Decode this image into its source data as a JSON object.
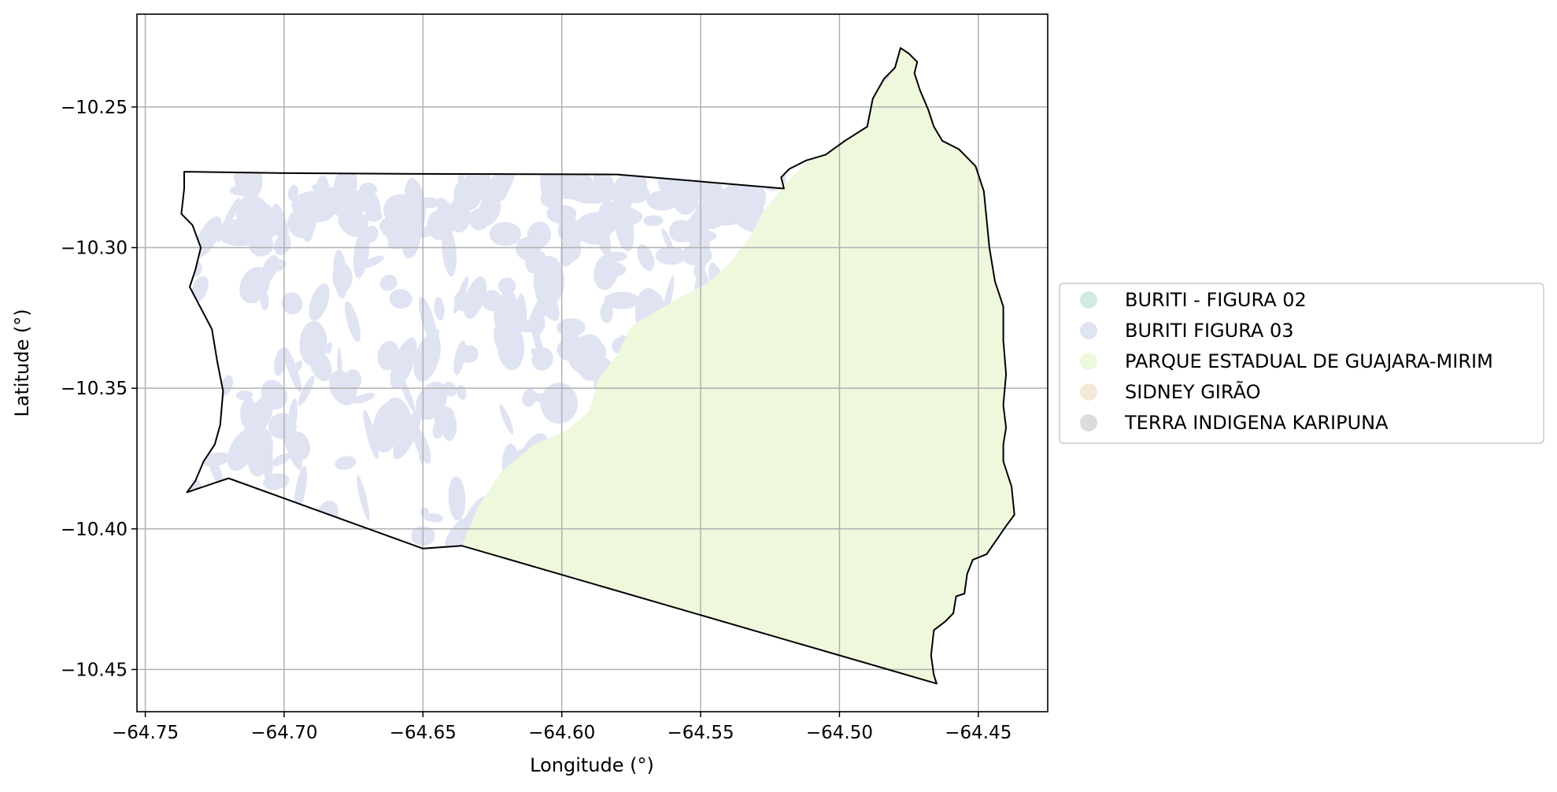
{
  "chart_data": {
    "type": "map",
    "xlabel": "Longitude (°)",
    "ylabel": "Latitude (°)",
    "xlim": [
      -64.753,
      -64.425
    ],
    "ylim": [
      -10.465,
      -10.217
    ],
    "grid": true,
    "x_ticks": [
      {
        "value": -64.75,
        "label": "−64.75"
      },
      {
        "value": -64.7,
        "label": "−64.70"
      },
      {
        "value": -64.65,
        "label": "−64.65"
      },
      {
        "value": -64.6,
        "label": "−64.60"
      },
      {
        "value": -64.55,
        "label": "−64.55"
      },
      {
        "value": -64.5,
        "label": "−64.50"
      },
      {
        "value": -64.45,
        "label": "−64.45"
      }
    ],
    "y_ticks": [
      {
        "value": -10.25,
        "label": "−10.25"
      },
      {
        "value": -10.3,
        "label": "−10.30"
      },
      {
        "value": -10.35,
        "label": "−10.35"
      },
      {
        "value": -10.4,
        "label": "−10.40"
      },
      {
        "value": -10.45,
        "label": "−10.45"
      }
    ],
    "legend_position": "right",
    "series": [
      {
        "name": "BURITI - FIGURA 02",
        "color": "#d1ebdf"
      },
      {
        "name": "BURITI FIGURA 03",
        "color": "#dfe3f2"
      },
      {
        "name": "PARQUE ESTADUAL DE GUAJARA-MIRIM",
        "color": "#eef8dc"
      },
      {
        "name": "SIDNEY GIRÃO",
        "color": "#f7e9da"
      },
      {
        "name": "TERRA INDIGENA KARIPUNA",
        "color": "#dcdcdc"
      }
    ],
    "boundary": [
      [
        -64.735,
        -10.387
      ],
      [
        -64.732,
        -10.383
      ],
      [
        -64.729,
        -10.376
      ],
      [
        -64.725,
        -10.37
      ],
      [
        -64.723,
        -10.363
      ],
      [
        -64.722,
        -10.351
      ],
      [
        -64.724,
        -10.341
      ],
      [
        -64.726,
        -10.329
      ],
      [
        -64.734,
        -10.314
      ],
      [
        -64.732,
        -10.308
      ],
      [
        -64.73,
        -10.3
      ],
      [
        -64.733,
        -10.292
      ],
      [
        -64.737,
        -10.288
      ],
      [
        -64.736,
        -10.279
      ],
      [
        -64.736,
        -10.273
      ],
      [
        -64.7,
        -10.2735
      ],
      [
        -64.65,
        -10.2738
      ],
      [
        -64.58,
        -10.274
      ],
      [
        -64.52,
        -10.279
      ],
      [
        -64.521,
        -10.275
      ],
      [
        -64.518,
        -10.272
      ],
      [
        -64.512,
        -10.269
      ],
      [
        -64.505,
        -10.267
      ],
      [
        -64.498,
        -10.262
      ],
      [
        -64.49,
        -10.257
      ],
      [
        -64.488,
        -10.247
      ],
      [
        -64.484,
        -10.24
      ],
      [
        -64.48,
        -10.236
      ],
      [
        -64.478,
        -10.229
      ],
      [
        -64.475,
        -10.231
      ],
      [
        -64.472,
        -10.234
      ],
      [
        -64.473,
        -10.238
      ],
      [
        -64.471,
        -10.244
      ],
      [
        -64.468,
        -10.251
      ],
      [
        -64.466,
        -10.257
      ],
      [
        -64.463,
        -10.262
      ],
      [
        -64.457,
        -10.265
      ],
      [
        -64.451,
        -10.271
      ],
      [
        -64.448,
        -10.28
      ],
      [
        -64.447,
        -10.29
      ],
      [
        -64.446,
        -10.3
      ],
      [
        -64.444,
        -10.312
      ],
      [
        -64.441,
        -10.321
      ],
      [
        -64.441,
        -10.333
      ],
      [
        -64.44,
        -10.345
      ],
      [
        -64.441,
        -10.356
      ],
      [
        -64.44,
        -10.364
      ],
      [
        -64.441,
        -10.37
      ],
      [
        -64.441,
        -10.376
      ],
      [
        -64.438,
        -10.385
      ],
      [
        -64.437,
        -10.395
      ],
      [
        -64.44,
        -10.399
      ],
      [
        -64.447,
        -10.409
      ],
      [
        -64.452,
        -10.411
      ],
      [
        -64.454,
        -10.416
      ],
      [
        -64.455,
        -10.423
      ],
      [
        -64.458,
        -10.424
      ],
      [
        -64.459,
        -10.43
      ],
      [
        -64.462,
        -10.433
      ],
      [
        -64.466,
        -10.436
      ],
      [
        -64.467,
        -10.445
      ],
      [
        -64.466,
        -10.452
      ],
      [
        -64.465,
        -10.455
      ],
      [
        -64.636,
        -10.406
      ],
      [
        -64.65,
        -10.407
      ],
      [
        -64.72,
        -10.382
      ],
      [
        -64.735,
        -10.387
      ]
    ]
  }
}
